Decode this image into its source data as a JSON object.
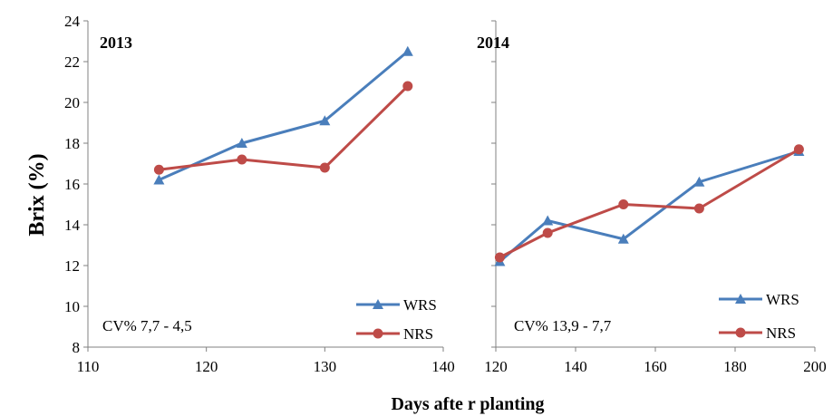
{
  "chart_data": [
    {
      "type": "line",
      "title": "2013",
      "ylabel": "Brix (%)",
      "ylim": [
        8,
        24
      ],
      "yticks": [
        "8",
        "10",
        "12",
        "14",
        "16",
        "18",
        "20",
        "22",
        "24"
      ],
      "xlim": [
        110,
        140
      ],
      "xticks": [
        "110",
        "120",
        "130",
        "140"
      ],
      "annotation": "CV%  7,7 - 4,5",
      "legend_position": "bottom-right",
      "series": [
        {
          "name": "WRS",
          "color": "#4a7ebb",
          "marker": "triangle",
          "x": [
            116,
            123,
            130,
            137
          ],
          "y": [
            16.2,
            18.0,
            19.1,
            22.5
          ]
        },
        {
          "name": "NRS",
          "color": "#be4b48",
          "marker": "circle",
          "x": [
            116,
            123,
            130,
            137
          ],
          "y": [
            16.7,
            17.2,
            16.8,
            20.8
          ]
        }
      ]
    },
    {
      "type": "line",
      "title": "2014",
      "xlabel": "Days afte r planting",
      "ylim": [
        8,
        24
      ],
      "xlim": [
        120,
        200
      ],
      "xticks": [
        "120",
        "140",
        "160",
        "180",
        "200"
      ],
      "annotation": "CV%  13,9  - 7,7",
      "legend_position": "bottom-right",
      "series": [
        {
          "name": "WRS",
          "color": "#4a7ebb",
          "marker": "triangle",
          "x": [
            121,
            133,
            152,
            171,
            196
          ],
          "y": [
            12.2,
            14.2,
            13.3,
            16.1,
            17.6
          ]
        },
        {
          "name": "NRS",
          "color": "#be4b48",
          "marker": "circle",
          "x": [
            121,
            133,
            152,
            171,
            196
          ],
          "y": [
            12.4,
            13.6,
            15.0,
            14.8,
            17.7
          ]
        }
      ]
    }
  ]
}
